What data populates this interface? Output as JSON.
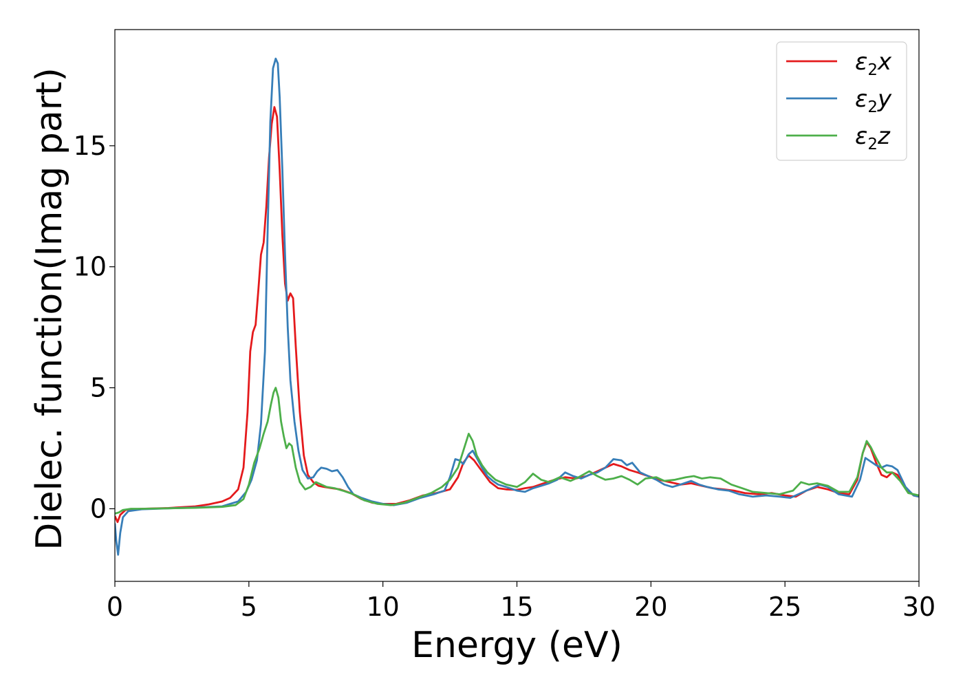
{
  "chart_data": {
    "type": "line",
    "title": "",
    "xlabel": "Energy (eV)",
    "ylabel": "Dielec. function(Imag part)",
    "xlim": [
      0,
      30
    ],
    "ylim": [
      -3,
      19.8
    ],
    "xticks": [
      0,
      5,
      10,
      15,
      20,
      25,
      30
    ],
    "yticks": [
      0,
      5,
      10,
      15
    ],
    "grid": false,
    "legend_position": "top-right",
    "series": [
      {
        "name": "ε₂x",
        "legend_base": "ε",
        "legend_sub": "2",
        "legend_suffix": "x",
        "color": "#e41a1c",
        "points": [
          [
            0,
            -0.3
          ],
          [
            0.1,
            -0.55
          ],
          [
            0.2,
            -0.25
          ],
          [
            0.4,
            -0.05
          ],
          [
            1,
            0.0
          ],
          [
            2,
            0.03
          ],
          [
            3,
            0.1
          ],
          [
            3.5,
            0.18
          ],
          [
            4,
            0.3
          ],
          [
            4.3,
            0.45
          ],
          [
            4.6,
            0.8
          ],
          [
            4.8,
            1.7
          ],
          [
            4.95,
            4.0
          ],
          [
            5.05,
            6.5
          ],
          [
            5.15,
            7.3
          ],
          [
            5.25,
            7.6
          ],
          [
            5.35,
            9.0
          ],
          [
            5.45,
            10.5
          ],
          [
            5.55,
            11.0
          ],
          [
            5.65,
            12.5
          ],
          [
            5.75,
            14.5
          ],
          [
            5.85,
            15.9
          ],
          [
            5.95,
            16.6
          ],
          [
            6.05,
            16.2
          ],
          [
            6.15,
            14.0
          ],
          [
            6.25,
            11.3
          ],
          [
            6.35,
            9.3
          ],
          [
            6.45,
            8.6
          ],
          [
            6.55,
            8.9
          ],
          [
            6.65,
            8.7
          ],
          [
            6.75,
            6.7
          ],
          [
            6.9,
            4.0
          ],
          [
            7.05,
            2.2
          ],
          [
            7.2,
            1.4
          ],
          [
            7.4,
            1.1
          ],
          [
            7.6,
            0.95
          ],
          [
            7.8,
            0.9
          ],
          [
            8.1,
            0.85
          ],
          [
            8.4,
            0.8
          ],
          [
            8.8,
            0.65
          ],
          [
            9.2,
            0.4
          ],
          [
            9.6,
            0.25
          ],
          [
            10,
            0.2
          ],
          [
            10.5,
            0.2
          ],
          [
            11,
            0.35
          ],
          [
            11.5,
            0.55
          ],
          [
            12,
            0.65
          ],
          [
            12.5,
            0.8
          ],
          [
            12.8,
            1.3
          ],
          [
            13.0,
            1.9
          ],
          [
            13.2,
            2.2
          ],
          [
            13.4,
            2.0
          ],
          [
            13.6,
            1.7
          ],
          [
            13.8,
            1.4
          ],
          [
            14.0,
            1.1
          ],
          [
            14.3,
            0.85
          ],
          [
            14.6,
            0.8
          ],
          [
            15.0,
            0.78
          ],
          [
            15.3,
            0.85
          ],
          [
            15.6,
            0.9
          ],
          [
            16.0,
            1.05
          ],
          [
            16.4,
            1.2
          ],
          [
            16.8,
            1.3
          ],
          [
            17.2,
            1.25
          ],
          [
            17.6,
            1.35
          ],
          [
            18.0,
            1.55
          ],
          [
            18.3,
            1.7
          ],
          [
            18.6,
            1.85
          ],
          [
            18.9,
            1.75
          ],
          [
            19.2,
            1.6
          ],
          [
            19.5,
            1.5
          ],
          [
            19.9,
            1.35
          ],
          [
            20.3,
            1.2
          ],
          [
            20.7,
            1.1
          ],
          [
            21.1,
            1.0
          ],
          [
            21.5,
            1.05
          ],
          [
            21.9,
            0.95
          ],
          [
            22.3,
            0.85
          ],
          [
            22.7,
            0.8
          ],
          [
            23.1,
            0.75
          ],
          [
            23.5,
            0.65
          ],
          [
            24.0,
            0.6
          ],
          [
            24.5,
            0.65
          ],
          [
            25.0,
            0.55
          ],
          [
            25.4,
            0.5
          ],
          [
            25.8,
            0.75
          ],
          [
            26.2,
            0.9
          ],
          [
            26.6,
            0.8
          ],
          [
            27.0,
            0.65
          ],
          [
            27.4,
            0.6
          ],
          [
            27.7,
            1.2
          ],
          [
            27.9,
            2.3
          ],
          [
            28.05,
            2.75
          ],
          [
            28.2,
            2.5
          ],
          [
            28.4,
            1.9
          ],
          [
            28.6,
            1.4
          ],
          [
            28.8,
            1.3
          ],
          [
            29.0,
            1.5
          ],
          [
            29.2,
            1.4
          ],
          [
            29.5,
            0.85
          ],
          [
            29.8,
            0.55
          ],
          [
            30,
            0.5
          ]
        ]
      },
      {
        "name": "ε₂y",
        "legend_base": "ε",
        "legend_sub": "2",
        "legend_suffix": "y",
        "color": "#377eb8",
        "points": [
          [
            0,
            -0.6
          ],
          [
            0.05,
            -1.3
          ],
          [
            0.12,
            -1.9
          ],
          [
            0.2,
            -1.0
          ],
          [
            0.3,
            -0.35
          ],
          [
            0.5,
            -0.1
          ],
          [
            1,
            -0.02
          ],
          [
            2,
            0.02
          ],
          [
            3,
            0.05
          ],
          [
            4,
            0.1
          ],
          [
            4.6,
            0.3
          ],
          [
            4.9,
            0.7
          ],
          [
            5.1,
            1.2
          ],
          [
            5.3,
            2.0
          ],
          [
            5.45,
            3.5
          ],
          [
            5.6,
            6.5
          ],
          [
            5.7,
            11.5
          ],
          [
            5.8,
            16.0
          ],
          [
            5.9,
            18.2
          ],
          [
            6.0,
            18.6
          ],
          [
            6.08,
            18.4
          ],
          [
            6.15,
            17.0
          ],
          [
            6.25,
            14.0
          ],
          [
            6.35,
            10.5
          ],
          [
            6.45,
            7.5
          ],
          [
            6.55,
            5.3
          ],
          [
            6.7,
            3.6
          ],
          [
            6.85,
            2.4
          ],
          [
            7.0,
            1.6
          ],
          [
            7.2,
            1.25
          ],
          [
            7.4,
            1.3
          ],
          [
            7.55,
            1.55
          ],
          [
            7.7,
            1.7
          ],
          [
            7.9,
            1.65
          ],
          [
            8.1,
            1.55
          ],
          [
            8.3,
            1.6
          ],
          [
            8.5,
            1.3
          ],
          [
            8.7,
            0.9
          ],
          [
            8.9,
            0.6
          ],
          [
            9.2,
            0.45
          ],
          [
            9.6,
            0.3
          ],
          [
            10,
            0.2
          ],
          [
            10.4,
            0.15
          ],
          [
            10.9,
            0.25
          ],
          [
            11.4,
            0.45
          ],
          [
            11.9,
            0.6
          ],
          [
            12.3,
            0.75
          ],
          [
            12.5,
            1.3
          ],
          [
            12.7,
            2.05
          ],
          [
            12.85,
            2.0
          ],
          [
            13.0,
            1.85
          ],
          [
            13.2,
            2.25
          ],
          [
            13.35,
            2.4
          ],
          [
            13.5,
            2.1
          ],
          [
            13.7,
            1.7
          ],
          [
            13.9,
            1.35
          ],
          [
            14.1,
            1.15
          ],
          [
            14.3,
            1.0
          ],
          [
            14.6,
            0.9
          ],
          [
            15.0,
            0.75
          ],
          [
            15.3,
            0.7
          ],
          [
            15.6,
            0.85
          ],
          [
            15.9,
            0.95
          ],
          [
            16.2,
            1.05
          ],
          [
            16.5,
            1.2
          ],
          [
            16.8,
            1.5
          ],
          [
            17.1,
            1.35
          ],
          [
            17.4,
            1.25
          ],
          [
            17.7,
            1.4
          ],
          [
            18.0,
            1.5
          ],
          [
            18.3,
            1.7
          ],
          [
            18.6,
            2.05
          ],
          [
            18.9,
            2.0
          ],
          [
            19.1,
            1.8
          ],
          [
            19.3,
            1.9
          ],
          [
            19.6,
            1.5
          ],
          [
            19.9,
            1.35
          ],
          [
            20.2,
            1.2
          ],
          [
            20.5,
            1.0
          ],
          [
            20.8,
            0.9
          ],
          [
            21.1,
            1.0
          ],
          [
            21.5,
            1.15
          ],
          [
            21.8,
            1.0
          ],
          [
            22.1,
            0.9
          ],
          [
            22.5,
            0.8
          ],
          [
            22.9,
            0.75
          ],
          [
            23.3,
            0.6
          ],
          [
            23.8,
            0.5
          ],
          [
            24.3,
            0.55
          ],
          [
            24.8,
            0.5
          ],
          [
            25.2,
            0.45
          ],
          [
            25.6,
            0.65
          ],
          [
            26.0,
            0.85
          ],
          [
            26.3,
            1.0
          ],
          [
            26.6,
            0.9
          ],
          [
            27.0,
            0.6
          ],
          [
            27.5,
            0.5
          ],
          [
            27.8,
            1.2
          ],
          [
            28.0,
            2.1
          ],
          [
            28.2,
            1.95
          ],
          [
            28.4,
            1.8
          ],
          [
            28.6,
            1.7
          ],
          [
            28.8,
            1.8
          ],
          [
            29.0,
            1.75
          ],
          [
            29.2,
            1.6
          ],
          [
            29.5,
            0.9
          ],
          [
            29.8,
            0.55
          ],
          [
            30,
            0.5
          ]
        ]
      },
      {
        "name": "ε₂z",
        "legend_base": "ε",
        "legend_sub": "2",
        "legend_suffix": "z",
        "color": "#4daf4a",
        "points": [
          [
            0,
            -0.2
          ],
          [
            0.15,
            -0.15
          ],
          [
            0.3,
            -0.05
          ],
          [
            0.6,
            0.0
          ],
          [
            1,
            0.0
          ],
          [
            2,
            0.02
          ],
          [
            3,
            0.04
          ],
          [
            4,
            0.08
          ],
          [
            4.5,
            0.15
          ],
          [
            4.8,
            0.4
          ],
          [
            5.0,
            1.0
          ],
          [
            5.2,
            1.9
          ],
          [
            5.4,
            2.5
          ],
          [
            5.55,
            3.1
          ],
          [
            5.7,
            3.6
          ],
          [
            5.82,
            4.3
          ],
          [
            5.92,
            4.8
          ],
          [
            6.0,
            5.0
          ],
          [
            6.1,
            4.6
          ],
          [
            6.2,
            3.6
          ],
          [
            6.3,
            3.0
          ],
          [
            6.4,
            2.5
          ],
          [
            6.5,
            2.7
          ],
          [
            6.6,
            2.6
          ],
          [
            6.75,
            1.7
          ],
          [
            6.9,
            1.1
          ],
          [
            7.1,
            0.8
          ],
          [
            7.3,
            0.9
          ],
          [
            7.5,
            1.1
          ],
          [
            7.7,
            1.0
          ],
          [
            7.9,
            0.9
          ],
          [
            8.2,
            0.85
          ],
          [
            8.5,
            0.75
          ],
          [
            8.9,
            0.6
          ],
          [
            9.3,
            0.35
          ],
          [
            9.8,
            0.2
          ],
          [
            10.3,
            0.15
          ],
          [
            10.8,
            0.25
          ],
          [
            11.3,
            0.45
          ],
          [
            11.8,
            0.65
          ],
          [
            12.2,
            0.9
          ],
          [
            12.5,
            1.2
          ],
          [
            12.8,
            1.7
          ],
          [
            13.0,
            2.4
          ],
          [
            13.2,
            3.1
          ],
          [
            13.35,
            2.8
          ],
          [
            13.5,
            2.2
          ],
          [
            13.7,
            1.8
          ],
          [
            13.9,
            1.5
          ],
          [
            14.2,
            1.2
          ],
          [
            14.6,
            1.0
          ],
          [
            15.0,
            0.9
          ],
          [
            15.3,
            1.1
          ],
          [
            15.6,
            1.45
          ],
          [
            15.9,
            1.2
          ],
          [
            16.2,
            1.1
          ],
          [
            16.6,
            1.3
          ],
          [
            17.0,
            1.15
          ],
          [
            17.3,
            1.3
          ],
          [
            17.7,
            1.55
          ],
          [
            18.0,
            1.35
          ],
          [
            18.3,
            1.2
          ],
          [
            18.6,
            1.25
          ],
          [
            18.9,
            1.35
          ],
          [
            19.2,
            1.2
          ],
          [
            19.5,
            1.0
          ],
          [
            19.8,
            1.25
          ],
          [
            20.2,
            1.3
          ],
          [
            20.5,
            1.15
          ],
          [
            20.9,
            1.2
          ],
          [
            21.3,
            1.3
          ],
          [
            21.6,
            1.35
          ],
          [
            21.9,
            1.25
          ],
          [
            22.2,
            1.3
          ],
          [
            22.6,
            1.25
          ],
          [
            23.0,
            1.0
          ],
          [
            23.4,
            0.85
          ],
          [
            23.8,
            0.7
          ],
          [
            24.3,
            0.65
          ],
          [
            24.8,
            0.6
          ],
          [
            25.3,
            0.75
          ],
          [
            25.6,
            1.1
          ],
          [
            25.9,
            1.0
          ],
          [
            26.2,
            1.05
          ],
          [
            26.6,
            0.95
          ],
          [
            27.0,
            0.7
          ],
          [
            27.4,
            0.7
          ],
          [
            27.7,
            1.3
          ],
          [
            27.9,
            2.3
          ],
          [
            28.05,
            2.8
          ],
          [
            28.2,
            2.55
          ],
          [
            28.4,
            2.1
          ],
          [
            28.6,
            1.7
          ],
          [
            28.8,
            1.5
          ],
          [
            29.0,
            1.5
          ],
          [
            29.3,
            1.15
          ],
          [
            29.6,
            0.65
          ],
          [
            30,
            0.55
          ]
        ]
      }
    ]
  }
}
